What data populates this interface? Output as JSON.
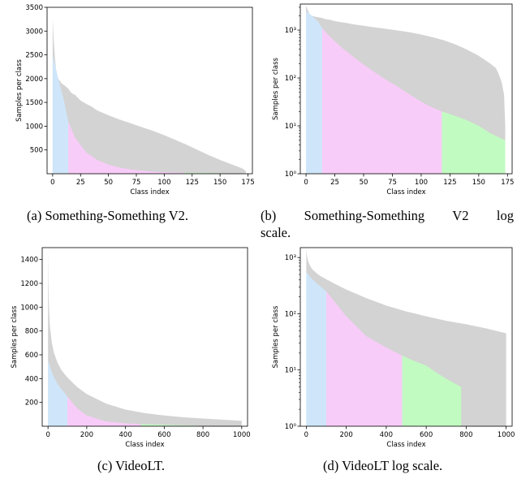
{
  "captions": {
    "a": "(a) Something-Something V2.",
    "b_line1": "(b)  Something-Something  V2  log",
    "b_line2": "scale.",
    "c": "(c) VideoLT.",
    "d": "(d) VideoLT log scale."
  },
  "colors": {
    "total": "#d3d3d3",
    "head": "#cfe6fa",
    "medium": "#f8ccf8",
    "tail": "#c2fbc2",
    "axis": "#000000"
  },
  "chart_data": [
    {
      "id": "a",
      "type": "area",
      "title": "",
      "xlabel": "Class index",
      "ylabel": "Samples per class",
      "xlim": [
        -5,
        179
      ],
      "ylim": [
        0,
        3500
      ],
      "yscale": "linear",
      "xticks": [
        0,
        25,
        50,
        75,
        100,
        125,
        150,
        175
      ],
      "xtick_labels": [
        "0",
        "25",
        "50",
        "75",
        "100",
        "125",
        "150",
        "175"
      ],
      "yticks": [
        500,
        1000,
        1500,
        2000,
        2500,
        3000,
        3500
      ],
      "ytick_labels": [
        "500",
        "1000",
        "1500",
        "2000",
        "2500",
        "3000",
        "3500"
      ],
      "grid": false,
      "total_samples": {
        "x": [
          0,
          1,
          2,
          3,
          5,
          8,
          11,
          14,
          16,
          18,
          20,
          25,
          30,
          35,
          40,
          50,
          60,
          70,
          80,
          90,
          100,
          110,
          120,
          130,
          140,
          150,
          160,
          170,
          173
        ],
        "y": [
          3240,
          2800,
          2450,
          2200,
          2000,
          1900,
          1850,
          1790,
          1720,
          1680,
          1660,
          1540,
          1470,
          1410,
          1330,
          1230,
          1140,
          1060,
          980,
          900,
          810,
          710,
          610,
          500,
          390,
          290,
          200,
          110,
          60
        ]
      },
      "highlight_regions": [
        {
          "name": "head",
          "x": [
            0,
            5,
            10,
            14
          ],
          "y": [
            2500,
            2000,
            1550,
            1100
          ]
        },
        {
          "name": "medium",
          "x": [
            14,
            20,
            30,
            40,
            50,
            60,
            70,
            80,
            90,
            100,
            110,
            118
          ],
          "y": [
            1100,
            760,
            450,
            290,
            190,
            130,
            90,
            65,
            45,
            32,
            24,
            20
          ]
        },
        {
          "name": "tail",
          "x": [
            118,
            130,
            140,
            150,
            160,
            173
          ],
          "y": [
            20,
            16,
            13,
            10,
            7,
            5
          ]
        }
      ]
    },
    {
      "id": "b",
      "type": "area",
      "title": "",
      "xlabel": "Class index",
      "ylabel": "Samples per class",
      "xlim": [
        -5,
        179
      ],
      "ylim": [
        1,
        3500
      ],
      "yscale": "log",
      "xticks": [
        0,
        25,
        50,
        75,
        100,
        125,
        150,
        175
      ],
      "xtick_labels": [
        "0",
        "25",
        "50",
        "75",
        "100",
        "125",
        "150",
        "175"
      ],
      "yticks": [
        1,
        10,
        100,
        1000
      ],
      "ytick_labels": [
        "10⁰",
        "10¹",
        "10²",
        "10³"
      ],
      "grid": false,
      "total_samples": {
        "x": [
          0,
          1,
          2,
          3,
          5,
          8,
          11,
          14,
          16,
          18,
          20,
          25,
          30,
          35,
          40,
          50,
          60,
          70,
          80,
          90,
          100,
          110,
          120,
          130,
          140,
          150,
          160,
          165,
          168,
          170,
          172,
          173
        ],
        "y": [
          3240,
          2800,
          2450,
          2200,
          2000,
          1900,
          1850,
          1790,
          1720,
          1680,
          1660,
          1540,
          1470,
          1410,
          1330,
          1230,
          1140,
          1060,
          980,
          900,
          810,
          710,
          610,
          500,
          390,
          290,
          200,
          160,
          110,
          80,
          45,
          10
        ]
      },
      "highlight_regions": [
        {
          "name": "head",
          "x": [
            0,
            5,
            10,
            14
          ],
          "y": [
            2500,
            2000,
            1550,
            1100
          ]
        },
        {
          "name": "medium",
          "x": [
            14,
            20,
            30,
            40,
            50,
            60,
            70,
            80,
            90,
            100,
            110,
            118
          ],
          "y": [
            1100,
            760,
            450,
            290,
            190,
            130,
            90,
            65,
            45,
            32,
            24,
            20
          ]
        },
        {
          "name": "tail",
          "x": [
            118,
            130,
            140,
            150,
            160,
            173
          ],
          "y": [
            20,
            16,
            13,
            10,
            7,
            5
          ]
        }
      ]
    },
    {
      "id": "c",
      "type": "area",
      "title": "",
      "xlabel": "Class index",
      "ylabel": "Samples per class",
      "xlim": [
        -30,
        1030
      ],
      "ylim": [
        0,
        1500
      ],
      "yscale": "linear",
      "xticks": [
        0,
        200,
        400,
        600,
        800,
        1000
      ],
      "xtick_labels": [
        "0",
        "200",
        "400",
        "600",
        "800",
        "1000"
      ],
      "yticks": [
        200,
        400,
        600,
        800,
        1000,
        1200,
        1400
      ],
      "ytick_labels": [
        "200",
        "400",
        "600",
        "800",
        "1000",
        "1200",
        "1400"
      ],
      "grid": false,
      "total_samples": {
        "x": [
          0,
          2,
          5,
          10,
          20,
          30,
          50,
          70,
          100,
          150,
          200,
          300,
          400,
          500,
          600,
          700,
          800,
          900,
          1000
        ],
        "y": [
          1480,
          1200,
          1000,
          840,
          700,
          620,
          530,
          470,
          410,
          330,
          270,
          190,
          140,
          110,
          90,
          75,
          65,
          55,
          45
        ]
      },
      "highlight_regions": [
        {
          "name": "head",
          "x": [
            0,
            20,
            50,
            100
          ],
          "y": [
            560,
            450,
            350,
            250
          ]
        },
        {
          "name": "medium",
          "x": [
            100,
            150,
            200,
            300,
            400,
            480
          ],
          "y": [
            250,
            150,
            90,
            40,
            25,
            18
          ]
        },
        {
          "name": "tail",
          "x": [
            480,
            550,
            600,
            650,
            700,
            775
          ],
          "y": [
            18,
            14,
            12,
            9,
            7,
            5
          ]
        }
      ]
    },
    {
      "id": "d",
      "type": "area",
      "title": "",
      "xlabel": "Class index",
      "ylabel": "Samples per class",
      "xlim": [
        -30,
        1030
      ],
      "ylim": [
        1,
        1500
      ],
      "yscale": "log",
      "xticks": [
        0,
        200,
        400,
        600,
        800,
        1000
      ],
      "xtick_labels": [
        "0",
        "200",
        "400",
        "600",
        "800",
        "1000"
      ],
      "yticks": [
        1,
        10,
        100,
        1000
      ],
      "ytick_labels": [
        "10⁰",
        "10¹",
        "10²",
        "10³"
      ],
      "grid": false,
      "total_samples": {
        "x": [
          0,
          2,
          5,
          10,
          20,
          30,
          50,
          70,
          100,
          150,
          200,
          300,
          400,
          500,
          600,
          700,
          800,
          900,
          1000
        ],
        "y": [
          1480,
          1200,
          1000,
          840,
          700,
          620,
          530,
          470,
          410,
          330,
          270,
          190,
          140,
          110,
          90,
          75,
          65,
          55,
          45
        ]
      },
      "highlight_regions": [
        {
          "name": "head",
          "x": [
            0,
            20,
            50,
            100
          ],
          "y": [
            560,
            450,
            350,
            250
          ]
        },
        {
          "name": "medium",
          "x": [
            100,
            150,
            200,
            300,
            400,
            480
          ],
          "y": [
            250,
            150,
            90,
            40,
            25,
            18
          ]
        },
        {
          "name": "tail",
          "x": [
            480,
            550,
            600,
            650,
            700,
            775
          ],
          "y": [
            18,
            14,
            12,
            9,
            7,
            5
          ]
        }
      ]
    }
  ]
}
